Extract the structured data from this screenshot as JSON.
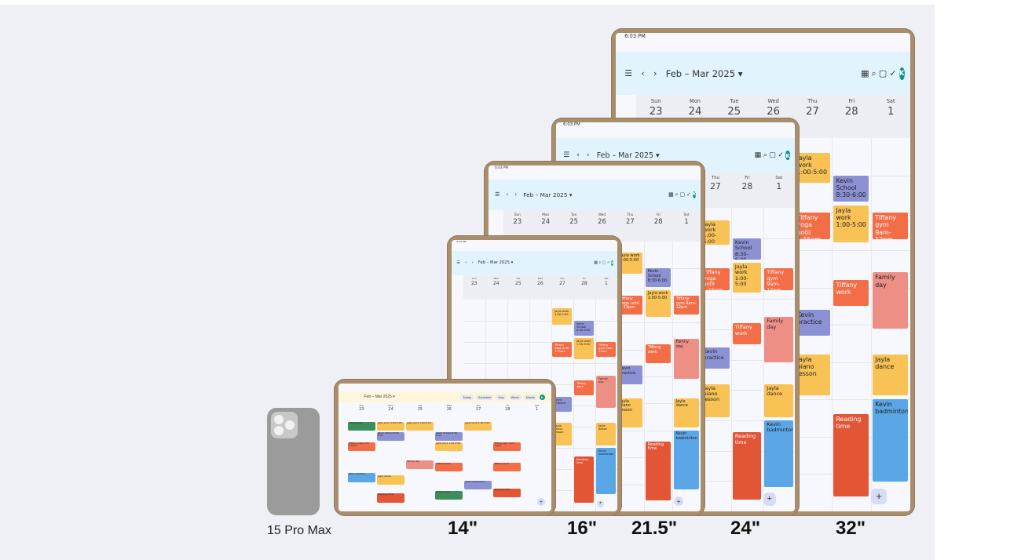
{
  "labels": {
    "phone": "15 Pro Max",
    "d14": "14\"",
    "d16": "16\"",
    "d21": "21.5\"",
    "d24": "24\"",
    "d32": "32\""
  },
  "calendar": {
    "status_time": "6:03 PM",
    "title": "Feb – Mar 2025 ▾",
    "avatar_letter": "K",
    "weekdays": [
      "Sun",
      "Mon",
      "Tue",
      "Wed",
      "Thu",
      "Fri",
      "Sat"
    ],
    "dates": [
      "23",
      "24",
      "25",
      "26",
      "27",
      "28",
      "1"
    ],
    "toolbar_today": "Today",
    "toolbar_schedule": "Schedule",
    "toolbar_day": "Day",
    "toolbar_week": "Week",
    "toolbar_month": "Month",
    "fab": "+",
    "events": {
      "jayla_work_1": "Jayla work 1:00-5:00",
      "kevin_school": "Kevin School 8:30-6:00",
      "jayla_work_2": "Jayla work 1:00-5:00",
      "tiffany_yoga": "Tiffany yoga until 1:15pm",
      "tiffany_gym": "Tiffany gym 9am-12pm",
      "tiffany_work": "Tiffany work",
      "family_day": "Family day",
      "kevin_practice": "Kevin practice",
      "jayla_piano": "Jayla piano lesson",
      "jayla_dance": "Jayla dance",
      "kevin_badminton": "Kevin badminton",
      "reading_time": "Reading time",
      "school_work": "School work"
    }
  },
  "colors": {
    "yellow": "#f9c254",
    "orange": "#f36d47",
    "red": "#e25535",
    "purple": "#8c91d4",
    "blue": "#5aa6e6",
    "pink": "#ee8f86",
    "green": "#3e8e5c"
  }
}
